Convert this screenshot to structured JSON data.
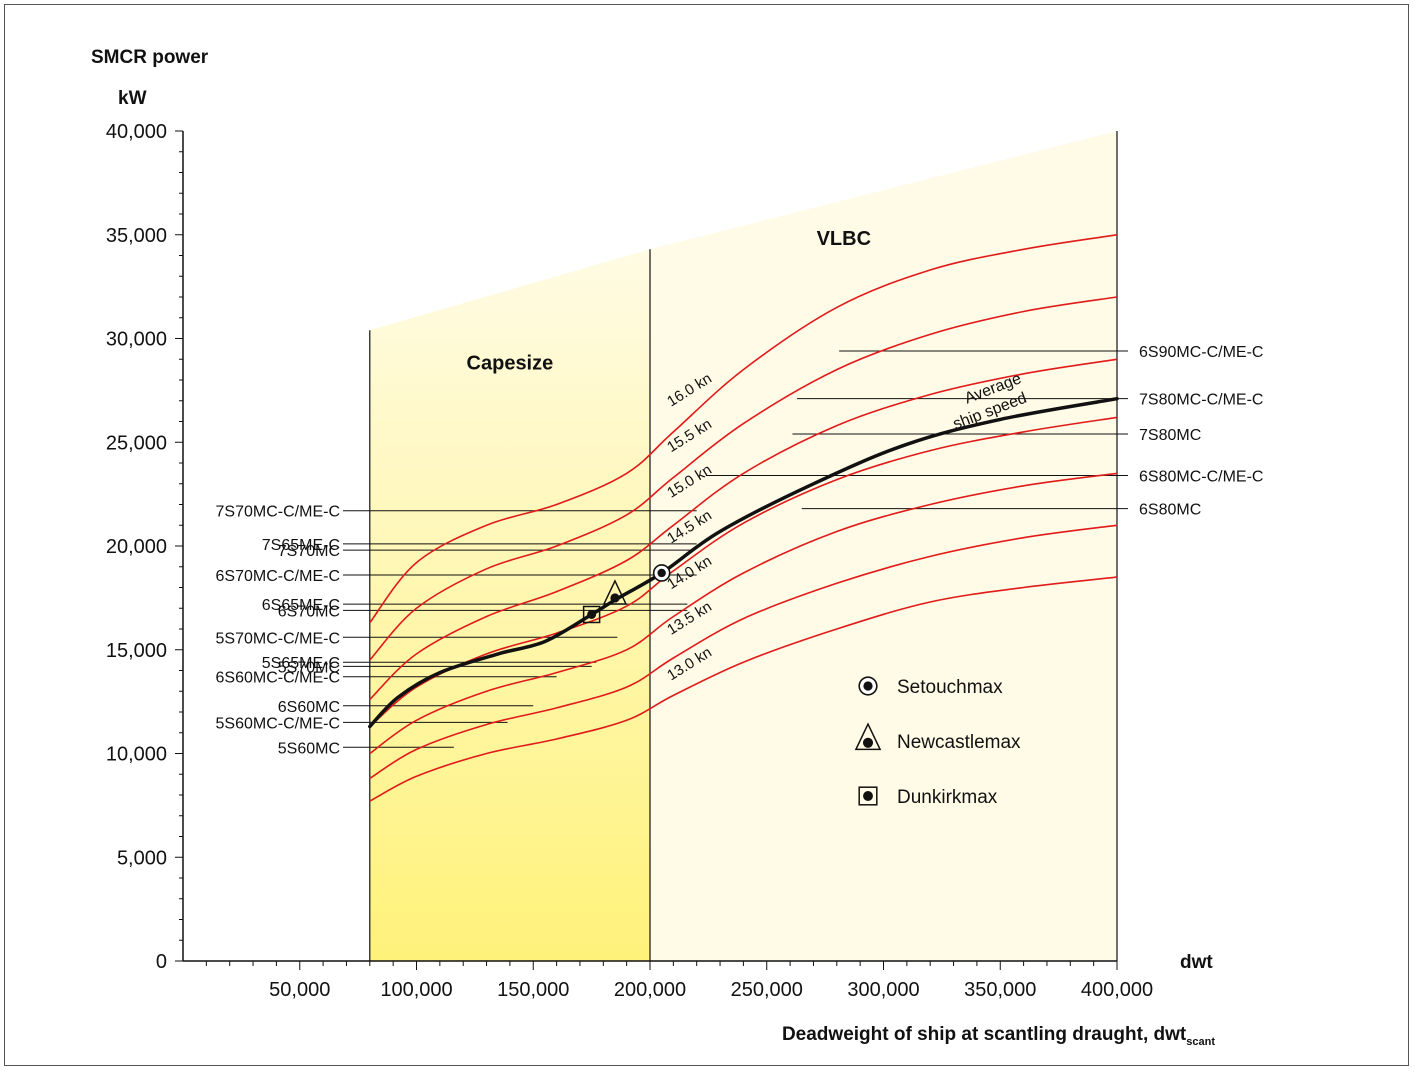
{
  "chart_data": {
    "type": "line",
    "title_line1": "SMCR power",
    "title_line2": "kW",
    "xlabel": "Deadweight of ship at scantling draught, dwt",
    "xlabel_sub": "scant",
    "xunit": "dwt",
    "xlim": [
      0,
      400000
    ],
    "ylim": [
      0,
      40000
    ],
    "x_ticks": [
      {
        "value": 50000,
        "label": "50,000"
      },
      {
        "value": 100000,
        "label": "100,000"
      },
      {
        "value": 150000,
        "label": "150,000"
      },
      {
        "value": 200000,
        "label": "200,000"
      },
      {
        "value": 250000,
        "label": "250,000"
      },
      {
        "value": 300000,
        "label": "300,000"
      },
      {
        "value": 350000,
        "label": "350,000"
      },
      {
        "value": 400000,
        "label": "400,000"
      }
    ],
    "y_ticks": [
      {
        "value": 0,
        "label": "0"
      },
      {
        "value": 5000,
        "label": "5,000"
      },
      {
        "value": 10000,
        "label": "10,000"
      },
      {
        "value": 15000,
        "label": "15,000"
      },
      {
        "value": 20000,
        "label": "20,000"
      },
      {
        "value": 25000,
        "label": "25,000"
      },
      {
        "value": 30000,
        "label": "30,000"
      },
      {
        "value": 35000,
        "label": "35,000"
      },
      {
        "value": 40000,
        "label": "40,000"
      }
    ],
    "regions": [
      {
        "name": "Capesize",
        "x_range": [
          80000,
          200000
        ],
        "label_x": 140000,
        "label_y": 28500
      },
      {
        "name": "VLBC",
        "x_range": [
          200000,
          400000
        ],
        "label_x": 283000,
        "label_y": 34500
      }
    ],
    "x_region_top": [
      {
        "x": 80000,
        "y": 30400
      },
      {
        "x": 200000,
        "y": 34300
      },
      {
        "x": 400000,
        "y": 40000
      }
    ],
    "speed_curves": [
      {
        "name": "16.0 kn",
        "label_x": 209000,
        "label_y": 26700,
        "points": [
          [
            80000,
            16300
          ],
          [
            100000,
            19200
          ],
          [
            130000,
            21000
          ],
          [
            160000,
            22000
          ],
          [
            190000,
            23500
          ],
          [
            210000,
            25500
          ],
          [
            240000,
            28500
          ],
          [
            280000,
            31500
          ],
          [
            320000,
            33300
          ],
          [
            360000,
            34300
          ],
          [
            400000,
            35000
          ]
        ]
      },
      {
        "name": "15.5 kn",
        "label_x": 209000,
        "label_y": 24500,
        "points": [
          [
            80000,
            14500
          ],
          [
            100000,
            17000
          ],
          [
            130000,
            18900
          ],
          [
            160000,
            20000
          ],
          [
            190000,
            21500
          ],
          [
            210000,
            23300
          ],
          [
            240000,
            25900
          ],
          [
            280000,
            28500
          ],
          [
            320000,
            30200
          ],
          [
            360000,
            31300
          ],
          [
            400000,
            32000
          ]
        ]
      },
      {
        "name": "15.0 kn",
        "label_x": 209000,
        "label_y": 22300,
        "points": [
          [
            80000,
            12600
          ],
          [
            100000,
            14800
          ],
          [
            130000,
            16600
          ],
          [
            160000,
            17800
          ],
          [
            190000,
            19300
          ],
          [
            210000,
            21000
          ],
          [
            240000,
            23500
          ],
          [
            280000,
            25800
          ],
          [
            320000,
            27300
          ],
          [
            360000,
            28300
          ],
          [
            400000,
            29000
          ]
        ]
      },
      {
        "name": "14.5 kn",
        "label_x": 209000,
        "label_y": 20100,
        "points": [
          [
            80000,
            11300
          ],
          [
            100000,
            13200
          ],
          [
            130000,
            14800
          ],
          [
            160000,
            15800
          ],
          [
            190000,
            17100
          ],
          [
            210000,
            18800
          ],
          [
            240000,
            21100
          ],
          [
            280000,
            23200
          ],
          [
            320000,
            24600
          ],
          [
            360000,
            25500
          ],
          [
            400000,
            26200
          ]
        ]
      },
      {
        "name": "14.0 kn",
        "label_x": 209000,
        "label_y": 17900,
        "points": [
          [
            80000,
            10000
          ],
          [
            100000,
            11600
          ],
          [
            130000,
            13000
          ],
          [
            160000,
            13900
          ],
          [
            190000,
            15000
          ],
          [
            210000,
            16600
          ],
          [
            240000,
            18700
          ],
          [
            280000,
            20700
          ],
          [
            320000,
            22000
          ],
          [
            360000,
            22900
          ],
          [
            400000,
            23500
          ]
        ]
      },
      {
        "name": "13.5 kn",
        "label_x": 209000,
        "label_y": 15700,
        "points": [
          [
            80000,
            8800
          ],
          [
            100000,
            10200
          ],
          [
            130000,
            11400
          ],
          [
            160000,
            12200
          ],
          [
            190000,
            13200
          ],
          [
            210000,
            14600
          ],
          [
            240000,
            16500
          ],
          [
            280000,
            18200
          ],
          [
            320000,
            19500
          ],
          [
            360000,
            20400
          ],
          [
            400000,
            21000
          ]
        ]
      },
      {
        "name": "13.0 kn",
        "label_x": 209000,
        "label_y": 13500,
        "points": [
          [
            80000,
            7700
          ],
          [
            100000,
            8900
          ],
          [
            130000,
            10000
          ],
          [
            160000,
            10700
          ],
          [
            190000,
            11600
          ],
          [
            210000,
            12800
          ],
          [
            240000,
            14400
          ],
          [
            280000,
            16000
          ],
          [
            320000,
            17300
          ],
          [
            360000,
            18000
          ],
          [
            400000,
            18500
          ]
        ]
      }
    ],
    "average_curve": {
      "name_line1": "Average",
      "name_line2": "ship speed",
      "label_x": 335000,
      "label_y": 26000,
      "points": [
        [
          80000,
          11300
        ],
        [
          92000,
          12700
        ],
        [
          110000,
          13900
        ],
        [
          135000,
          14800
        ],
        [
          155000,
          15400
        ],
        [
          175000,
          16700
        ],
        [
          185000,
          17400
        ],
        [
          205000,
          18700
        ],
        [
          230000,
          20700
        ],
        [
          270000,
          23000
        ],
        [
          310000,
          24900
        ],
        [
          350000,
          26100
        ],
        [
          400000,
          27100
        ]
      ]
    },
    "engines": [
      {
        "name": "6S90MC-C/ME-C",
        "side": "right",
        "y": 29400,
        "x_start": 281000
      },
      {
        "name": "7S80MC-C/ME-C",
        "side": "right",
        "y": 27100,
        "x_start": 263000
      },
      {
        "name": "7S80MC",
        "side": "right",
        "y": 25400,
        "x_start": 261000
      },
      {
        "name": "6S80MC-C/ME-C",
        "side": "right",
        "y": 23400,
        "x_start": 224000
      },
      {
        "name": "6S80MC",
        "side": "right",
        "y": 21800,
        "x_start": 265000
      },
      {
        "name": "7S70MC-C/ME-C",
        "side": "left",
        "y": 21700,
        "x_end": 220000
      },
      {
        "name": "7S65ME-C",
        "side": "left",
        "y": 20100,
        "x_end": 220000
      },
      {
        "name": "7S70MC",
        "side": "left",
        "y": 19800,
        "x_end": 219000
      },
      {
        "name": "6S70MC-C/ME-C",
        "side": "left",
        "y": 18600,
        "x_end": 220000
      },
      {
        "name": "6S65ME-C",
        "side": "left",
        "y": 17200,
        "x_end": 216000
      },
      {
        "name": "6S70MC",
        "side": "left",
        "y": 16900,
        "x_end": 216000
      },
      {
        "name": "5S70MC-C/ME-C",
        "side": "left",
        "y": 15600,
        "x_end": 186000
      },
      {
        "name": "5S65ME-C",
        "side": "left",
        "y": 14400,
        "x_end": 177000
      },
      {
        "name": "5S70MC",
        "side": "left",
        "y": 14200,
        "x_end": 175000
      },
      {
        "name": "6S60MC-C/ME-C",
        "side": "left",
        "y": 13700,
        "x_end": 160000
      },
      {
        "name": "6S60MC",
        "side": "left",
        "y": 12300,
        "x_end": 150000
      },
      {
        "name": "5S60MC-C/ME-C",
        "side": "left",
        "y": 11500,
        "x_end": 139000
      },
      {
        "name": "5S60MC",
        "side": "left",
        "y": 10300,
        "x_end": 116000
      }
    ],
    "markers": [
      {
        "name": "Setouchmax",
        "shape": "circle",
        "x": 205000,
        "y": 18700
      },
      {
        "name": "Newcastlemax",
        "shape": "triangle",
        "x": 185000,
        "y": 17400
      },
      {
        "name": "Dunkirkmax",
        "shape": "square",
        "x": 175000,
        "y": 16700
      }
    ],
    "legend_position": "lower-right",
    "colors": {
      "speed_curve": "#e11a1a",
      "average_curve": "#111111",
      "capesize_top": "#fffbe4",
      "capesize_bottom": "#fff27a",
      "vlbc_fill": "#fffbe6",
      "axis": "#111111"
    }
  }
}
